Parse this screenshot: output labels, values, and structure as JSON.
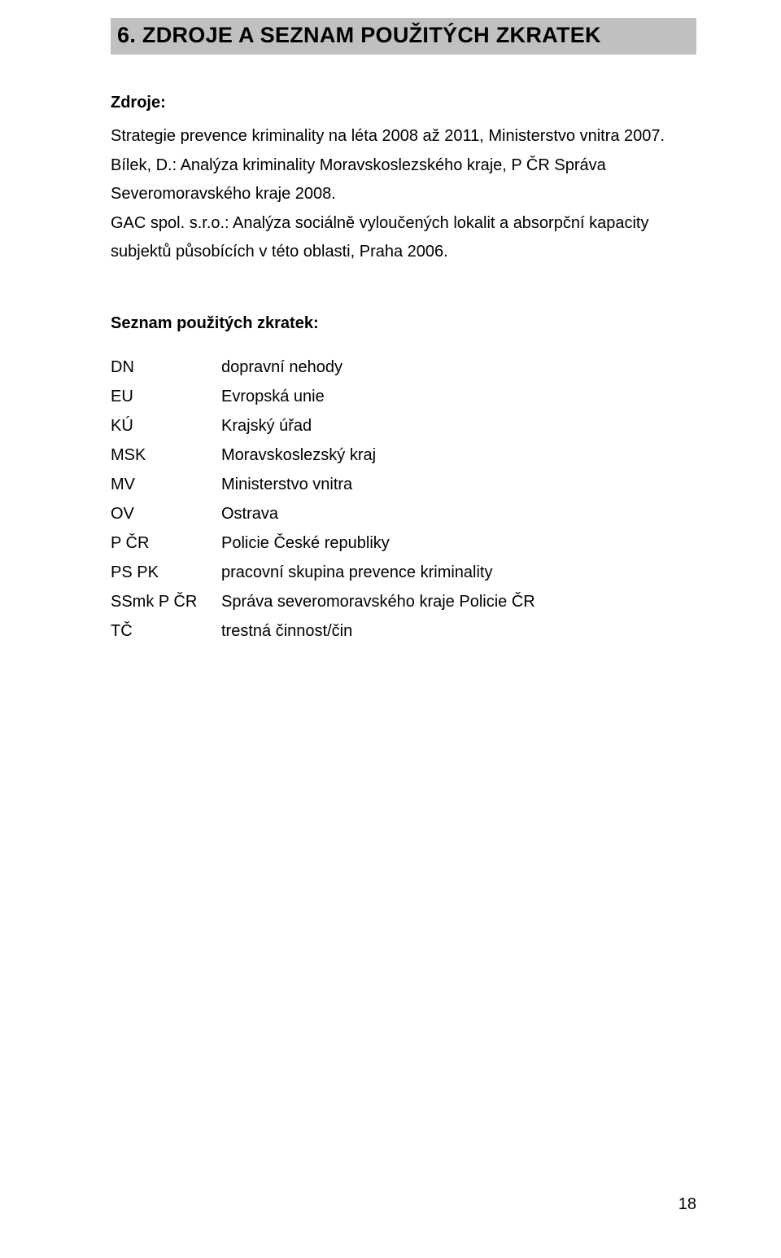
{
  "heading": "6. ZDROJE A SEZNAM POUŽITÝCH ZKRATEK",
  "sources": {
    "label": "Zdroje:",
    "items": [
      "Strategie prevence kriminality na léta 2008 až 2011, Ministerstvo vnitra 2007.",
      "Bílek, D.: Analýza kriminality Moravskoslezského kraje, P ČR Správa Severomoravského kraje 2008.",
      "GAC spol. s.r.o.: Analýza sociálně vyloučených lokalit a absorpční kapacity subjektů působících v této oblasti, Praha 2006."
    ]
  },
  "abbreviations": {
    "label": "Seznam použitých zkratek:",
    "rows": [
      {
        "key": "DN",
        "value": "dopravní nehody"
      },
      {
        "key": "EU",
        "value": "Evropská unie"
      },
      {
        "key": "KÚ",
        "value": "Krajský úřad"
      },
      {
        "key": "MSK",
        "value": "Moravskoslezský kraj"
      },
      {
        "key": "MV",
        "value": "Ministerstvo vnitra"
      },
      {
        "key": "OV",
        "value": "Ostrava"
      },
      {
        "key": "P ČR",
        "value": "Policie České republiky"
      },
      {
        "key": "PS PK",
        "value": "pracovní skupina prevence kriminality"
      },
      {
        "key": "SSmk P ČR",
        "value": "Správa severomoravského kraje Policie ČR"
      },
      {
        "key": "TČ",
        "value": "trestná činnost/čin"
      }
    ]
  },
  "page_number": "18"
}
